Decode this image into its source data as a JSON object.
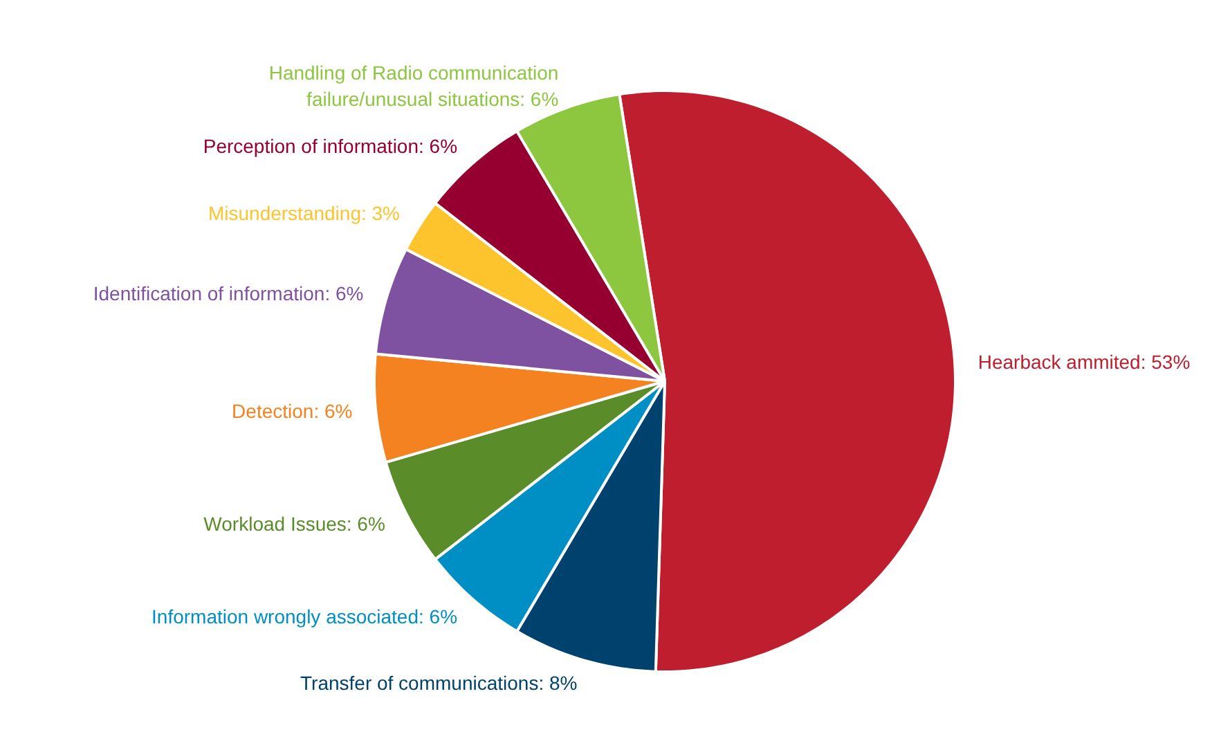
{
  "chart_data": {
    "type": "pie",
    "categories": [
      "Hearback ammited",
      "Transfer of communications",
      "Information wrongly associated",
      "Workload Issues",
      "Detection",
      "Identification of information",
      "Misunderstanding",
      "Perception of information",
      "Handling of Radio communication failure/unusual situations"
    ],
    "values": [
      53,
      8,
      6,
      6,
      6,
      6,
      3,
      6,
      6
    ],
    "value_labels": [
      "53%",
      "8%",
      "6%",
      "6%",
      "6%",
      "6%",
      "3%",
      "6%",
      "6%"
    ],
    "colors": [
      "#be1e2d",
      "#00426e",
      "#008fc5",
      "#5b8c2a",
      "#f58220",
      "#7e52a0",
      "#fdc42e",
      "#950030",
      "#8dc63f"
    ]
  }
}
